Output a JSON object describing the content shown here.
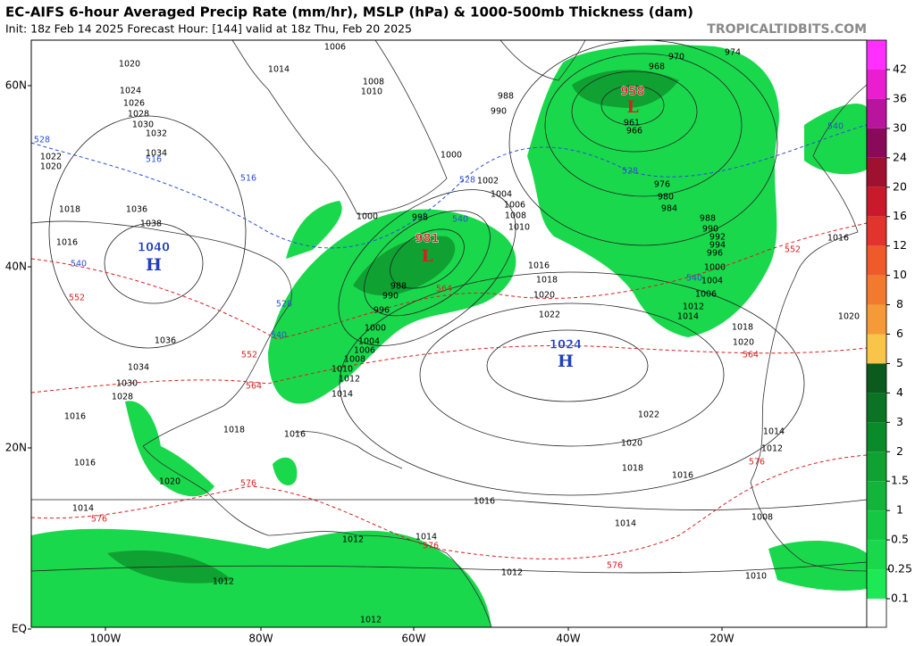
{
  "header": {
    "title": "EC-AIFS 6-hour Averaged Precip Rate (mm/hr), MSLP (hPa) & 1000-500mb Thickness (dam)",
    "subtitle": "Init: 18z Feb 14 2025   Forecast Hour: [144]   valid at 18z Thu, Feb 20 2025",
    "watermark": "TROPICALTIDBITS.COM"
  },
  "map": {
    "lat_labels": [
      "60N",
      "40N",
      "20N",
      "EQ"
    ],
    "lon_labels": [
      "100W",
      "80W",
      "60W",
      "40W",
      "20W"
    ],
    "pressure_centers": [
      {
        "type": "H",
        "value": 1040,
        "color": "#1f3fbf"
      },
      {
        "type": "L",
        "value": 981,
        "color": "#d62020"
      },
      {
        "type": "L",
        "value": 958,
        "color": "#d62020"
      },
      {
        "type": "H",
        "value": 1024,
        "color": "#1f3fbf"
      }
    ],
    "isobar_labels": [
      1006,
      1014,
      1020,
      1024,
      1026,
      1028,
      1030,
      1032,
      1034,
      1022,
      1020,
      1018,
      1036,
      1038,
      1016,
      1008,
      1010,
      988,
      990,
      1000,
      1002,
      1004,
      1006,
      1008,
      1010,
      1000,
      998,
      1016,
      1018,
      1020,
      1022,
      1012,
      1014,
      1018,
      1020,
      1022,
      1020,
      1018,
      1016,
      1016,
      1014,
      1012,
      1010,
      1008,
      1012,
      1014,
      1016,
      1020,
      970,
      974,
      968,
      961,
      966,
      976,
      980,
      984,
      988,
      990,
      992,
      994,
      996,
      1000,
      1004,
      1006,
      1036,
      1034,
      1030,
      1028,
      1016,
      1018,
      1016,
      1016,
      1020,
      1014,
      1012,
      1014,
      1012,
      1012,
      1014,
      1012,
      1010,
      1008,
      1006,
      1004,
      1000,
      996,
      990,
      988
    ],
    "thickness_labels": [
      {
        "value": 528,
        "color": "#2b4fd0"
      },
      {
        "value": 516,
        "color": "#2b4fd0"
      },
      {
        "value": 516,
        "color": "#2b4fd0"
      },
      {
        "value": 528,
        "color": "#2b4fd0"
      },
      {
        "value": 540,
        "color": "#2b4fd0"
      },
      {
        "value": 540,
        "color": "#2b4fd0"
      },
      {
        "value": 528,
        "color": "#2b4fd0"
      },
      {
        "value": 540,
        "color": "#2b4fd0"
      },
      {
        "value": 540,
        "color": "#2b4fd0"
      },
      {
        "value": 528,
        "color": "#2b4fd0"
      },
      {
        "value": 540,
        "color": "#2b4fd0"
      },
      {
        "value": 552,
        "color": "#d62020"
      },
      {
        "value": 564,
        "color": "#d62020"
      },
      {
        "value": 552,
        "color": "#d62020"
      },
      {
        "value": 564,
        "color": "#d62020"
      },
      {
        "value": 564,
        "color": "#d62020"
      },
      {
        "value": 576,
        "color": "#d62020"
      },
      {
        "value": 576,
        "color": "#d62020"
      },
      {
        "value": 576,
        "color": "#d62020"
      },
      {
        "value": 576,
        "color": "#d62020"
      },
      {
        "value": 576,
        "color": "#d62020"
      },
      {
        "value": 552,
        "color": "#d62020"
      }
    ]
  },
  "colorbar": {
    "ticks": [
      42,
      36,
      30,
      24,
      20,
      16,
      12,
      10,
      8,
      6,
      5,
      4,
      3,
      2,
      1.5,
      1,
      0.5,
      0.25,
      0.1
    ],
    "colors": [
      "#ff30ff",
      "#e81ed0",
      "#b8149e",
      "#8a0a5a",
      "#9e1230",
      "#c81a2a",
      "#e0342c",
      "#ee5a2a",
      "#f27a2e",
      "#f59a38",
      "#f8c44a",
      "#0b5a1e",
      "#0a7424",
      "#0b8a2a",
      "#0fa232",
      "#12b53a",
      "#16c744",
      "#1ad84c",
      "#1fe856",
      "#ffffff"
    ]
  }
}
